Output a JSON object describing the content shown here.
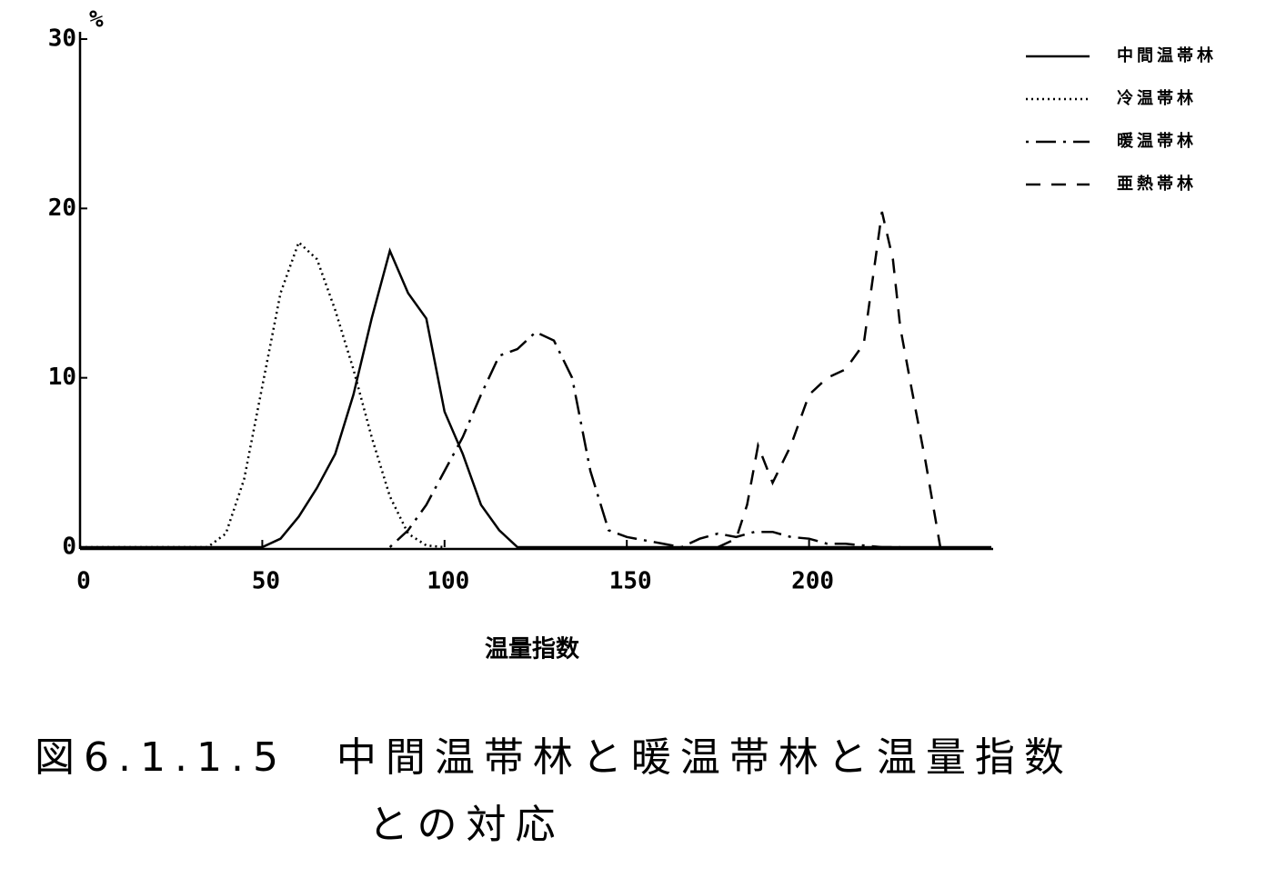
{
  "chart_data": {
    "type": "line",
    "y_unit_label": "%",
    "x_label": "温量指数",
    "caption": [
      "図6.1.1.5　中間温帯林と暖温帯林と温量指数",
      "との対応"
    ],
    "xlim": [
      0,
      250
    ],
    "xticks": [
      0,
      50,
      100,
      150,
      200
    ],
    "ylim": [
      0,
      30
    ],
    "yticks": [
      0,
      10,
      20,
      30
    ],
    "legend": "upper right",
    "series": [
      {
        "name": "中間温帯林",
        "color": "#000000",
        "style": "solid",
        "x": [
          0,
          45,
          50,
          55,
          60,
          65,
          70,
          75,
          80,
          85,
          90,
          95,
          100,
          105,
          110,
          115,
          120,
          250
        ],
        "values": [
          0,
          0,
          0,
          0.5,
          1.8,
          3.5,
          5.5,
          9,
          13.5,
          17.5,
          15,
          13.5,
          8,
          5.5,
          2.5,
          1,
          0,
          0
        ]
      },
      {
        "name": "冷温帯林",
        "color": "#000000",
        "style": "dotted",
        "x": [
          0,
          35,
          40,
          45,
          50,
          55,
          60,
          65,
          70,
          75,
          80,
          85,
          90,
          95,
          100
        ],
        "values": [
          0,
          0,
          0.8,
          4,
          9.5,
          15,
          18,
          17,
          14,
          10.5,
          6.5,
          3,
          0.8,
          0.1,
          0
        ]
      },
      {
        "name": "暖温帯林",
        "color": "#000000",
        "style": "dashdot",
        "x": [
          85,
          90,
          95,
          100,
          105,
          110,
          115,
          120,
          125,
          130,
          135,
          140,
          145,
          150,
          155,
          160,
          165,
          170,
          175,
          180,
          185,
          190,
          195,
          200,
          205,
          210,
          215,
          220,
          225
        ],
        "values": [
          0,
          1,
          2.5,
          4.5,
          6.5,
          9,
          11.3,
          11.7,
          12.7,
          12.2,
          10,
          4.5,
          1,
          0.6,
          0.4,
          0.2,
          0,
          0.5,
          0.8,
          0.6,
          0.9,
          0.9,
          0.6,
          0.5,
          0.2,
          0.2,
          0.1,
          0,
          0
        ]
      },
      {
        "name": "亜熱帯林",
        "color": "#000000",
        "style": "dashed",
        "x": [
          175,
          180,
          183,
          186,
          190,
          195,
          200,
          205,
          210,
          215,
          220,
          223,
          225,
          228,
          232,
          236
        ],
        "values": [
          0,
          0.5,
          2.5,
          6,
          3.8,
          6,
          9,
          10,
          10.5,
          12,
          19.8,
          17,
          13,
          9.5,
          5,
          0
        ]
      }
    ]
  }
}
